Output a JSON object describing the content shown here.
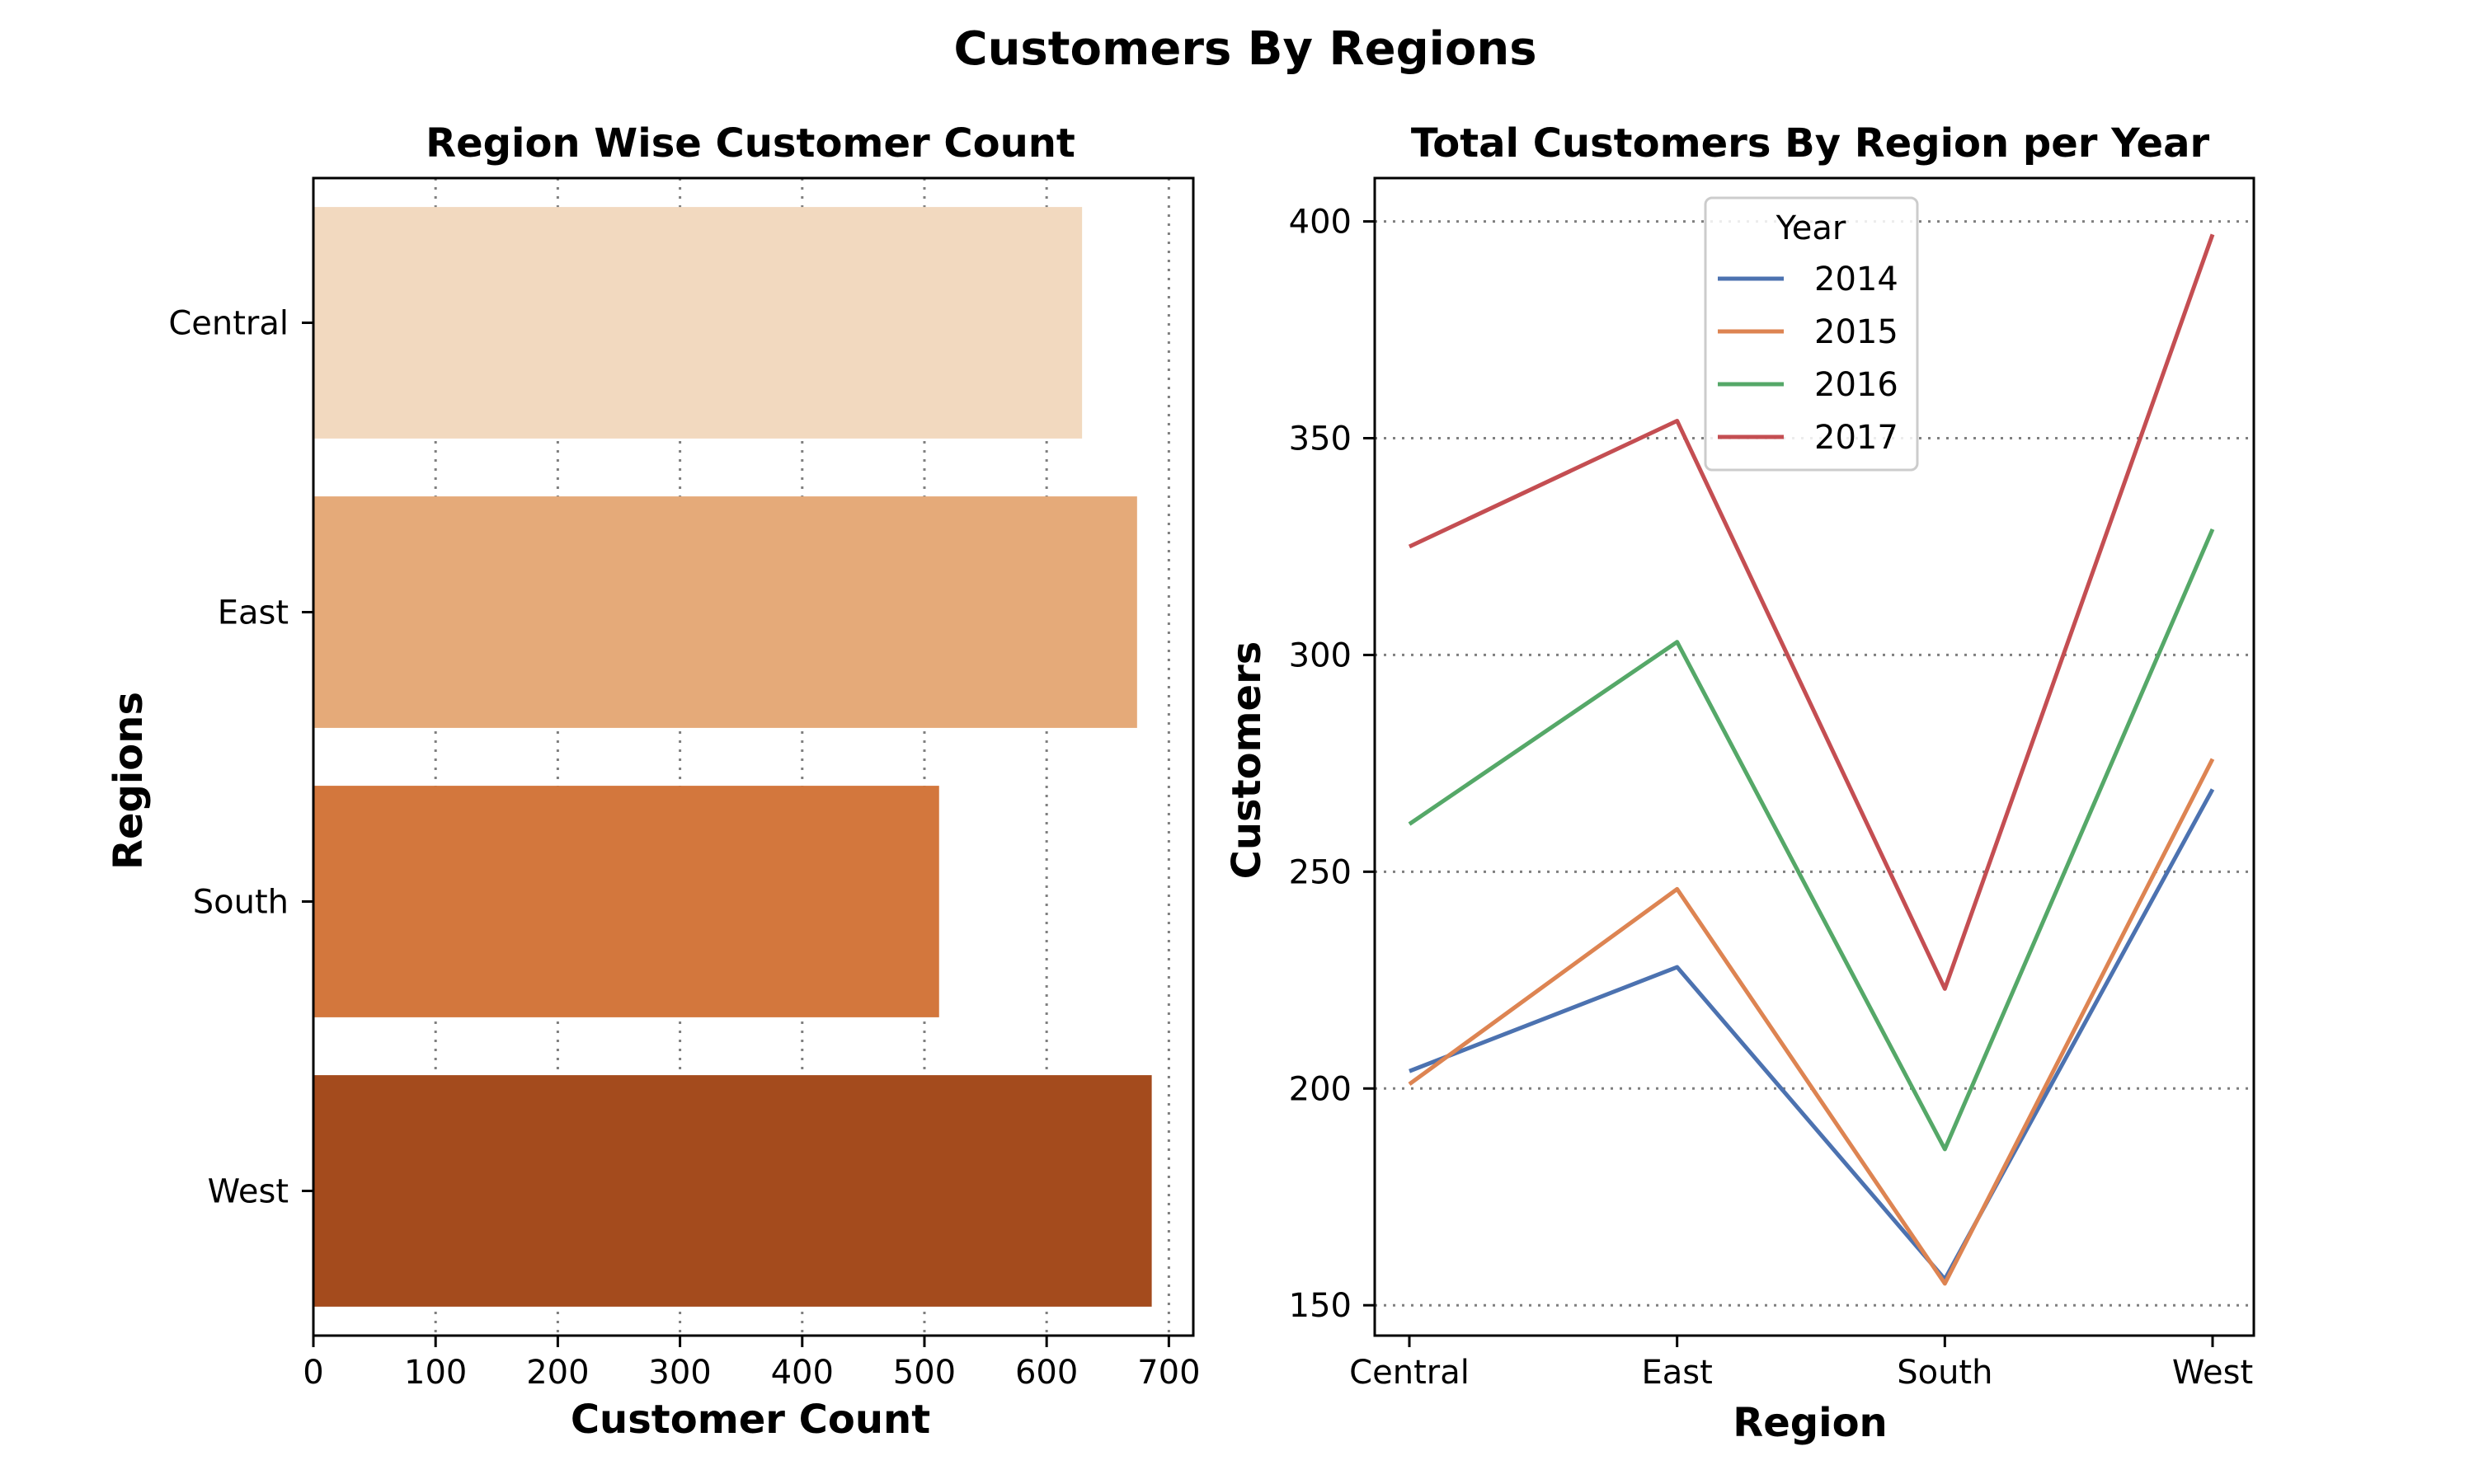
{
  "suptitle": "Customers By Regions",
  "chart_data": [
    {
      "type": "bar",
      "orientation": "horizontal",
      "title": "Region Wise Customer Count",
      "xlabel": "Customer Count",
      "ylabel": "Regions",
      "categories": [
        "Central",
        "East",
        "South",
        "West"
      ],
      "values": [
        629,
        674,
        512,
        686
      ],
      "colors": [
        "#f2d9bf",
        "#e5aa79",
        "#d3773d",
        "#a44b1d"
      ],
      "xlim": [
        0,
        720
      ],
      "xticks": [
        0,
        100,
        200,
        300,
        400,
        500,
        600,
        700
      ],
      "grid": "x",
      "grid_style": "dotted"
    },
    {
      "type": "line",
      "title": "Total Customers By Region per Year",
      "xlabel": "Region",
      "ylabel": "Customers",
      "categories": [
        "Central",
        "East",
        "South",
        "West"
      ],
      "ylim": [
        143,
        410
      ],
      "yticks": [
        150,
        200,
        250,
        300,
        350,
        400
      ],
      "grid": "y",
      "grid_style": "dotted",
      "legend_title": "Year",
      "legend_placement": "upper-center",
      "series": [
        {
          "name": "2014",
          "color": "#4c72b0",
          "values": [
            204,
            228,
            156,
            269
          ]
        },
        {
          "name": "2015",
          "color": "#dd8452",
          "values": [
            201,
            246,
            155,
            276
          ]
        },
        {
          "name": "2016",
          "color": "#55a868",
          "values": [
            261,
            303,
            186,
            329
          ]
        },
        {
          "name": "2017",
          "color": "#c44e52",
          "values": [
            325,
            354,
            223,
            397
          ]
        }
      ]
    }
  ]
}
